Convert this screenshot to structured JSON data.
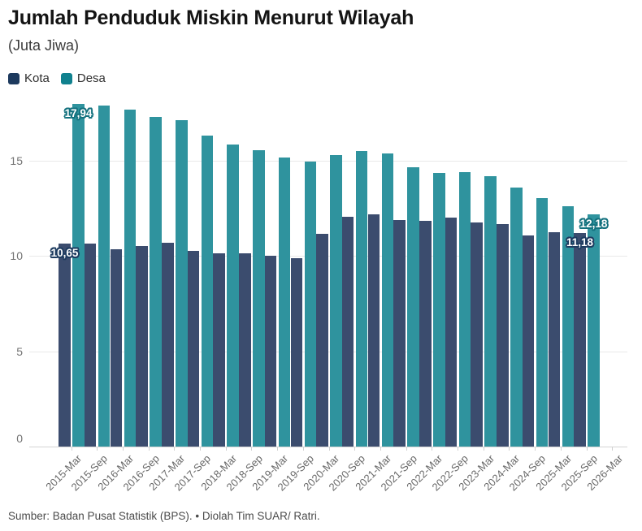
{
  "header": {
    "title": "Jumlah Penduduk Miskin Menurut Wilayah",
    "subtitle": "(Juta Jiwa)"
  },
  "legend": [
    {
      "id": "kota",
      "label": "Kota",
      "color": "#1d3a5e"
    },
    {
      "id": "desa",
      "label": "Desa",
      "color": "#10818e"
    }
  ],
  "footer": {
    "source": "Sumber: Badan Pusat Statistik (BPS). • Diolah Tim SUAR/ Ratri."
  },
  "chart_data": {
    "type": "bar",
    "title": "Jumlah Penduduk Miskin Menurut Wilayah",
    "unit": "Juta Jiwa",
    "grid": "horizontal",
    "legend_position": "top-left",
    "yticks": [
      0,
      5,
      10,
      15
    ],
    "ylim": [
      0,
      18.5
    ],
    "xlabel_rotation": -45,
    "categories": [
      "2015-Mar",
      "2015-Sep",
      "2016-Mar",
      "2016-Sep",
      "2017-Mar",
      "2017-Sep",
      "2018-Mar",
      "2018-Sep",
      "2019-Mar",
      "2019-Sep",
      "2020-Mar",
      "2020-Sep",
      "2021-Mar",
      "2021-Sep",
      "2022-Mar",
      "2022-Sep",
      "2023-Mar",
      "2024-Mar",
      "2024-Sep",
      "2025-Mar",
      "2025-Sep",
      "2026-Mar"
    ],
    "series": [
      {
        "name": "Kota",
        "color": "#3b4c6e",
        "halo": "#1e3c60",
        "values": [
          10.65,
          10.62,
          10.34,
          10.49,
          10.67,
          10.27,
          10.14,
          10.13,
          9.99,
          9.86,
          11.16,
          12.04,
          12.18,
          11.86,
          11.82,
          11.98,
          11.74,
          11.64,
          11.05,
          11.25,
          11.18,
          null
        ]
      },
      {
        "name": "Desa",
        "color": "#2f939e",
        "halo": "#13717e",
        "values": [
          17.94,
          17.89,
          17.67,
          17.28,
          17.1,
          16.31,
          15.81,
          15.54,
          15.15,
          14.93,
          15.26,
          15.51,
          15.37,
          14.64,
          14.34,
          14.38,
          14.16,
          13.58,
          13.01,
          12.6,
          12.18,
          null
        ]
      }
    ],
    "data_labels": [
      {
        "category": "2015-Mar",
        "series": "Kota",
        "text": "10,65"
      },
      {
        "category": "2015-Mar",
        "series": "Desa",
        "text": "17,94"
      },
      {
        "category": "2025-Sep",
        "series": "Kota",
        "text": "11,18"
      },
      {
        "category": "2025-Sep",
        "series": "Desa",
        "text": "12,18"
      }
    ]
  }
}
